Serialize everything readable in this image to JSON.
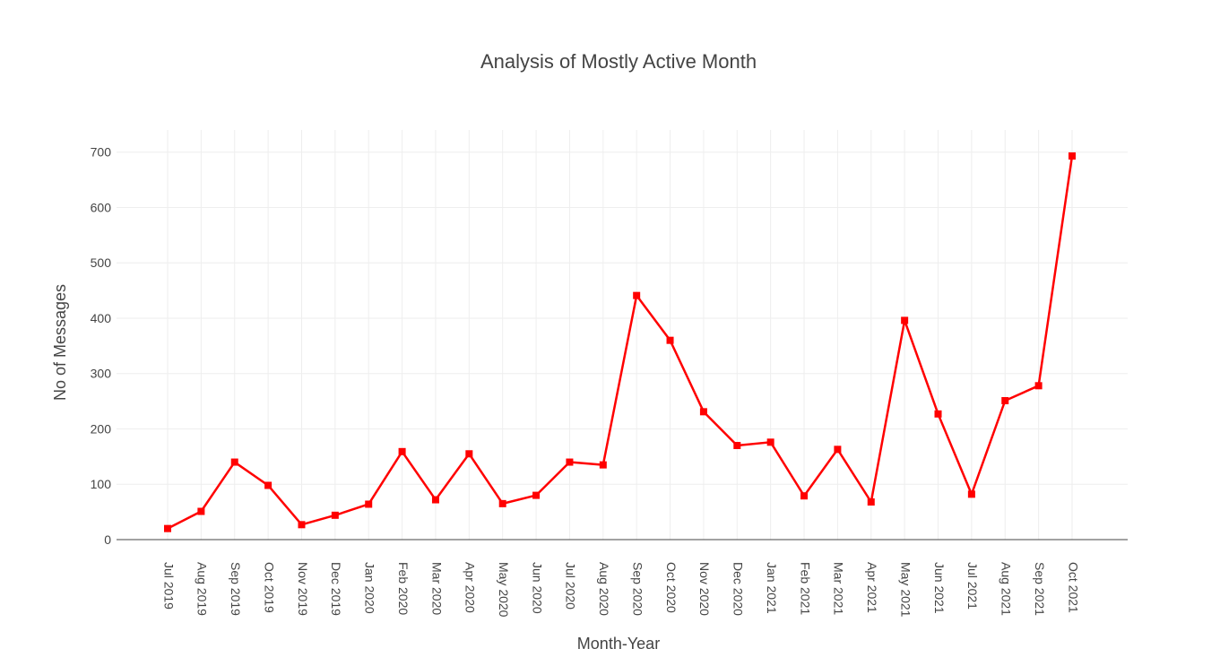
{
  "chart_data": {
    "type": "line",
    "title": "Analysis of Mostly Active Month",
    "xlabel": "Month-Year",
    "ylabel": "No of Messages",
    "categories": [
      "Jul 2019",
      "Aug 2019",
      "Sep 2019",
      "Oct 2019",
      "Nov 2019",
      "Dec 2019",
      "Jan 2020",
      "Feb 2020",
      "Mar 2020",
      "Apr 2020",
      "May 2020",
      "Jun 2020",
      "Jul 2020",
      "Aug 2020",
      "Sep 2020",
      "Oct 2020",
      "Nov 2020",
      "Dec 2020",
      "Jan 2021",
      "Feb 2021",
      "Mar 2021",
      "Apr 2021",
      "May 2021",
      "Jun 2021",
      "Jul 2021",
      "Aug 2021",
      "Sep 2021",
      "Oct 2021"
    ],
    "values": [
      20,
      51,
      140,
      98,
      27,
      44,
      64,
      159,
      72,
      155,
      65,
      80,
      140,
      135,
      441,
      360,
      231,
      170,
      176,
      79,
      163,
      68,
      396,
      227,
      82,
      251,
      278,
      693
    ],
    "yticks": [
      0,
      100,
      200,
      300,
      400,
      500,
      600,
      700
    ],
    "ylim": [
      0,
      740
    ],
    "grid": true,
    "legend": "none",
    "line_color": "#ff0000",
    "marker_color": "#ff0000"
  }
}
